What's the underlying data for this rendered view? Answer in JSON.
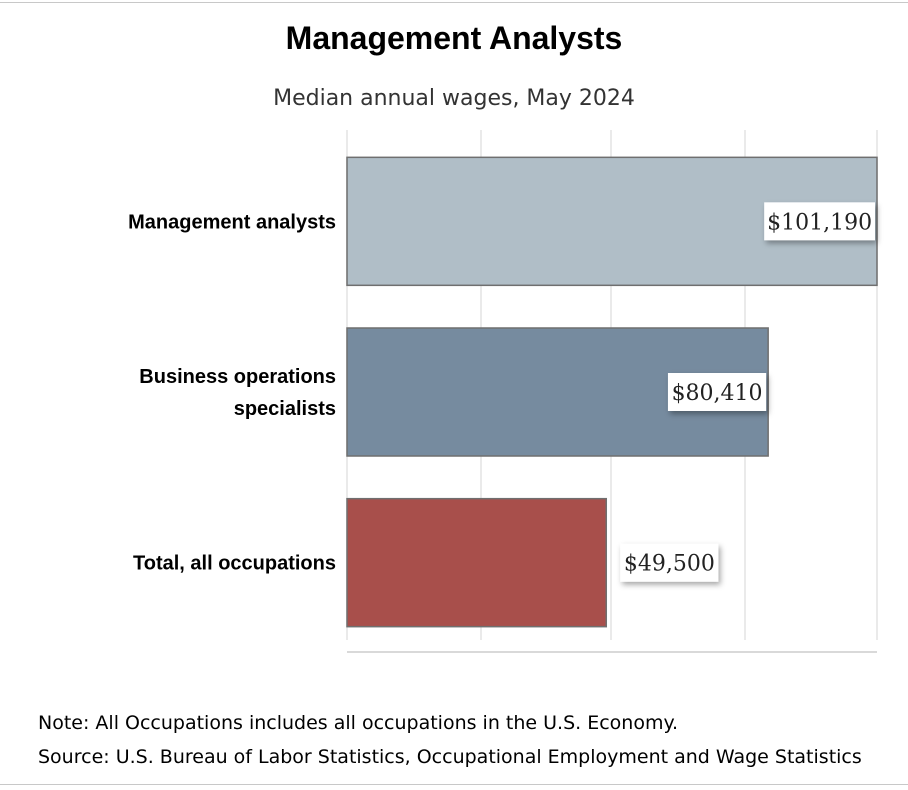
{
  "chart_data": {
    "type": "bar",
    "orientation": "horizontal",
    "title": "Management Analysts",
    "subtitle": "Median annual wages, May 2024",
    "categories": [
      [
        "Management analysts"
      ],
      [
        "Business operations",
        "specialists"
      ],
      [
        "Total, all occupations"
      ]
    ],
    "values": [
      101190,
      80410,
      49500
    ],
    "value_labels": [
      "$101,190",
      "$80,410",
      "$49,500"
    ],
    "colors": [
      "#b0bec7",
      "#768b9f",
      "#a84f4b"
    ],
    "xlim": [
      0,
      101190
    ],
    "grid": true
  },
  "notes": {
    "note": "Note: All Occupations includes all occupations in the U.S. Economy.",
    "source": "Source: U.S. Bureau of Labor Statistics, Occupational Employment and Wage Statistics"
  }
}
